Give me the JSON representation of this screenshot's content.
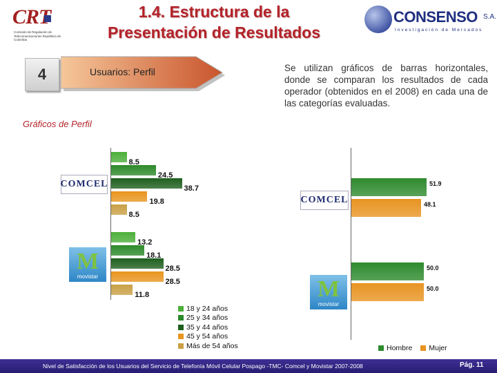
{
  "header": {
    "title_line1": "1.4. Estructura de la",
    "title_line2": "Presentación de Resultados",
    "crt_logo": {
      "text": "CRT",
      "caption": "Comisión de Regulación de Telecomunicaciones República de Colombia"
    },
    "consenso_logo": {
      "name": "CONSENSO",
      "suffix": "S.A.",
      "tagline": "Investigación de Mercados"
    }
  },
  "section": {
    "number": "4",
    "label": "Usuarios: Perfil",
    "subtitle": "Gráficos de Perfil"
  },
  "description": "Se utilizan gráficos de barras horizontales, donde se comparan los resultados de cada operador (obtenidos en el 2008) en cada una de las categorías evaluadas.",
  "brands": {
    "comcel": "COMCEL",
    "movistar": "movistar"
  },
  "colors": {
    "title": "#b3232a",
    "age_18_24": "#4caf3a",
    "age_25_34": "#2d8a2b",
    "age_35_44": "#1f5f1f",
    "age_45_54": "#e8951f",
    "age_55_plus": "#c9a046",
    "hombre": "#2e8b2e",
    "mujer": "#e89422",
    "footer": "#2f2383"
  },
  "chart_data": [
    {
      "type": "bar",
      "orientation": "horizontal",
      "groups": [
        "COMCEL",
        "movistar"
      ],
      "series": [
        {
          "name": "18 y 24 años",
          "values": [
            8.5,
            13.2
          ]
        },
        {
          "name": "25 y 34 años",
          "values": [
            24.5,
            18.1
          ]
        },
        {
          "name": "35 y 44 años",
          "values": [
            38.7,
            28.5
          ]
        },
        {
          "name": "45 y 54 años",
          "values": [
            19.8,
            28.5
          ]
        },
        {
          "name": "Más de 54 años",
          "values": [
            8.5,
            11.8
          ]
        }
      ],
      "labels": {
        "comcel": [
          "8.5",
          "24.5",
          "38.7",
          "19.8",
          "8.5"
        ],
        "movistar": [
          "13.2",
          "18.1",
          "28.5",
          "28.5",
          "11.8"
        ]
      },
      "legend": [
        "18 y 24 años",
        "25 y 34 años",
        "35 y 44 años",
        "45 y 54 años",
        "Más de 54 años"
      ],
      "legend_placement": "bottom-right"
    },
    {
      "type": "bar",
      "orientation": "horizontal",
      "groups": [
        "COMCEL",
        "movistar"
      ],
      "series": [
        {
          "name": "Hombre",
          "values": [
            51.9,
            50.0
          ]
        },
        {
          "name": "Mujer",
          "values": [
            48.1,
            50.0
          ]
        }
      ],
      "labels": {
        "comcel": [
          "51.9",
          "48.1"
        ],
        "movistar": [
          "50.0",
          "50.0"
        ]
      },
      "legend": [
        "Hombre",
        "Mujer"
      ],
      "legend_placement": "bottom"
    }
  ],
  "footer": {
    "text": "Nivel de Satisfacción de los Usuarios del Servicio de Telefonía Móvil Celular Pospago -TMC- Comcel y Movistar 2007-2008",
    "page": "Pág. 11"
  }
}
